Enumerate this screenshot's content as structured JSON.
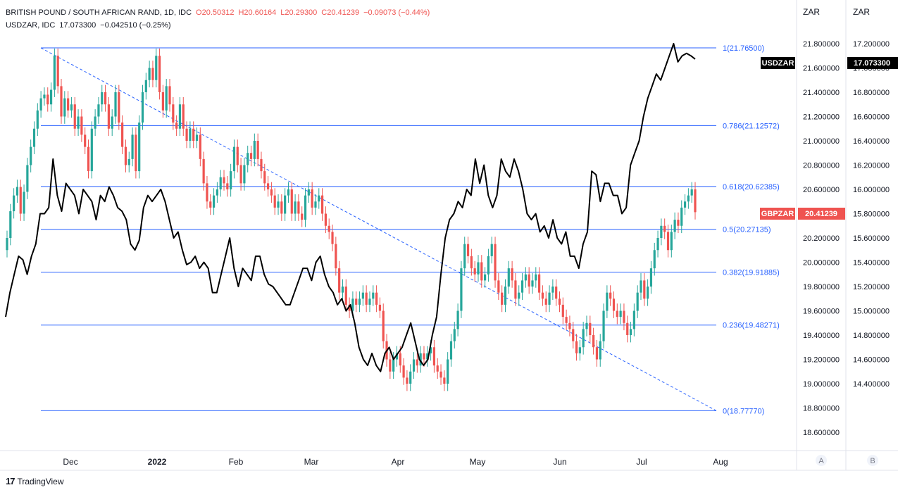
{
  "legend": {
    "main_title": "BRITISH POUND / SOUTH AFRICAN RAND, 1D, IDC",
    "open": "O20.50312",
    "high": "H20.60164",
    "low": "L20.29300",
    "close": "C20.41239",
    "change": "−0.09073 (−0.44%)",
    "overlay_title": "USDZAR, IDC",
    "overlay_last": "17.073300",
    "overlay_change": "−0.042510 (−0.25%)"
  },
  "scales": {
    "left_header": "ZAR",
    "right_header": "ZAR",
    "left_button": "A",
    "right_button": "B"
  },
  "footer": {
    "brand": "TradingView"
  },
  "colors": {
    "up": "#26a69a",
    "down": "#ef5350",
    "fib_line": "#2962ff",
    "fib_label": "#2962ff",
    "usdzar_line": "#000000",
    "gbpzar_tag": "#ef5350",
    "usdzar_tag": "#000000"
  },
  "chart_data": {
    "type": "line",
    "title": "BRITISH POUND / SOUTH AFRICAN RAND, 1D, IDC",
    "x_tick_labels": [
      "Dec",
      "2022",
      "Feb",
      "Mar",
      "Apr",
      "May",
      "Jun",
      "Jul",
      "Aug"
    ],
    "gbpzar_axis": {
      "ylim": [
        18.5,
        21.9
      ],
      "tick_labels": [
        "21.800000",
        "21.600000",
        "21.400000",
        "21.200000",
        "21.000000",
        "20.800000",
        "20.600000",
        "20.400000",
        "20.200000",
        "20.000000",
        "19.800000",
        "19.600000",
        "19.400000",
        "19.200000",
        "19.000000",
        "18.800000",
        "18.600000"
      ]
    },
    "usdzar_axis": {
      "ylim": [
        14.15,
        17.3
      ],
      "tick_labels": [
        "17.200000",
        "17.000000",
        "16.800000",
        "16.600000",
        "16.400000",
        "16.200000",
        "16.000000",
        "15.800000",
        "15.600000",
        "15.400000",
        "15.200000",
        "15.000000",
        "14.800000",
        "14.600000",
        "14.400000"
      ]
    },
    "fib_levels": [
      {
        "label": "1(21.76500)",
        "value": 21.765
      },
      {
        "label": "0.786(21.12572)",
        "value": 21.12572
      },
      {
        "label": "0.618(20.62385)",
        "value": 20.62385
      },
      {
        "label": "0.5(20.27135)",
        "value": 20.27135
      },
      {
        "label": "0.382(19.91885)",
        "value": 19.91885
      },
      {
        "label": "0.236(19.48271)",
        "value": 19.48271
      },
      {
        "label": "0(18.77770)",
        "value": 18.7777
      }
    ],
    "trend_line": {
      "from": [
        "2021-11-25",
        21.765
      ],
      "to": [
        "2022-08-01",
        18.7777
      ]
    },
    "series": [
      {
        "name": "GBPZAR",
        "type": "candlestick",
        "last_value_label": "20.41239",
        "closes": [
          20.2,
          20.42,
          20.55,
          20.62,
          20.4,
          20.58,
          20.8,
          20.95,
          21.1,
          21.25,
          21.35,
          21.38,
          21.3,
          21.42,
          21.7,
          21.45,
          21.2,
          21.35,
          21.25,
          21.3,
          21.1,
          21.2,
          21.05,
          20.95,
          20.75,
          21.1,
          21.2,
          21.3,
          21.4,
          21.3,
          21.1,
          21.2,
          21.4,
          21.15,
          20.95,
          20.8,
          20.85,
          21.05,
          20.75,
          21.15,
          21.4,
          21.5,
          21.6,
          21.5,
          21.7,
          21.4,
          21.25,
          21.45,
          21.3,
          21.15,
          21.1,
          21.3,
          21.1,
          21.0,
          21.1,
          21.0,
          21.05,
          20.85,
          20.65,
          20.5,
          20.45,
          20.55,
          20.6,
          20.7,
          20.65,
          20.6,
          20.75,
          20.95,
          20.8,
          20.65,
          20.8,
          20.9,
          20.85,
          21.0,
          20.85,
          20.75,
          20.65,
          20.6,
          20.55,
          20.45,
          20.5,
          20.4,
          20.55,
          20.6,
          20.4,
          20.5,
          20.4,
          20.35,
          20.55,
          20.6,
          20.45,
          20.5,
          20.55,
          20.4,
          20.3,
          20.25,
          20.15,
          19.95,
          19.75,
          19.8,
          19.65,
          19.6,
          19.7,
          19.65,
          19.7,
          19.75,
          19.65,
          19.7,
          19.75,
          19.65,
          19.6,
          19.35,
          19.2,
          19.1,
          19.2,
          19.25,
          19.15,
          19.05,
          19.0,
          19.1,
          19.2,
          19.15,
          19.25,
          19.2,
          19.25,
          19.3,
          19.15,
          19.1,
          19.05,
          19.0,
          19.2,
          19.35,
          19.45,
          19.6,
          19.95,
          20.15,
          20.05,
          19.95,
          19.9,
          20.0,
          19.85,
          19.9,
          20.05,
          20.15,
          19.85,
          19.75,
          19.65,
          19.8,
          19.95,
          19.85,
          19.7,
          19.75,
          19.85,
          19.9,
          19.8,
          19.85,
          19.9,
          19.75,
          19.7,
          19.65,
          19.75,
          19.8,
          19.7,
          19.65,
          19.55,
          19.5,
          19.45,
          19.35,
          19.25,
          19.3,
          19.45,
          19.5,
          19.4,
          19.3,
          19.2,
          19.35,
          19.6,
          19.75,
          19.7,
          19.6,
          19.55,
          19.6,
          19.5,
          19.4,
          19.45,
          19.6,
          19.75,
          19.85,
          19.7,
          19.8,
          19.95,
          20.1,
          20.2,
          20.3,
          20.25,
          20.1,
          20.25,
          20.35,
          20.3,
          20.45,
          20.5,
          20.55,
          20.6,
          20.41239
        ]
      },
      {
        "name": "USDZAR",
        "type": "line",
        "last_value_label": "17.073300",
        "values": [
          14.95,
          15.15,
          15.3,
          15.45,
          15.42,
          15.3,
          15.45,
          15.55,
          15.8,
          15.8,
          15.85,
          16.25,
          15.95,
          15.82,
          16.05,
          16.0,
          15.95,
          15.8,
          16.0,
          15.95,
          15.9,
          15.75,
          15.95,
          15.9,
          16.02,
          15.95,
          15.85,
          15.82,
          15.75,
          15.55,
          15.5,
          15.58,
          15.85,
          15.95,
          15.9,
          15.95,
          16.0,
          15.9,
          15.75,
          15.6,
          15.65,
          15.5,
          15.38,
          15.4,
          15.45,
          15.35,
          15.4,
          15.35,
          15.15,
          15.15,
          15.3,
          15.45,
          15.6,
          15.35,
          15.2,
          15.35,
          15.3,
          15.25,
          15.45,
          15.45,
          15.3,
          15.22,
          15.2,
          15.15,
          15.1,
          15.05,
          15.05,
          15.15,
          15.25,
          15.35,
          15.35,
          15.25,
          15.4,
          15.45,
          15.3,
          15.2,
          15.15,
          15.05,
          15.1,
          15.0,
          15.05,
          14.9,
          14.7,
          14.6,
          14.55,
          14.65,
          14.55,
          14.5,
          14.65,
          14.7,
          14.6,
          14.65,
          14.7,
          14.8,
          14.9,
          14.75,
          14.6,
          14.55,
          14.6,
          14.8,
          14.95,
          15.3,
          15.6,
          15.75,
          15.8,
          15.9,
          15.85,
          16.0,
          15.95,
          16.25,
          16.05,
          16.2,
          15.95,
          15.85,
          15.95,
          16.25,
          16.15,
          16.1,
          16.25,
          16.15,
          16.0,
          15.8,
          15.75,
          15.8,
          15.65,
          15.7,
          15.6,
          15.75,
          15.6,
          15.55,
          15.65,
          15.45,
          15.45,
          15.35,
          15.55,
          15.65,
          16.15,
          16.12,
          15.9,
          16.05,
          16.05,
          15.95,
          15.95,
          15.8,
          15.85,
          16.2,
          16.3,
          16.4,
          16.6,
          16.75,
          16.85,
          16.95,
          16.9,
          17.0,
          17.1,
          17.2,
          17.05,
          17.1,
          17.12,
          17.1,
          17.073
        ]
      }
    ]
  }
}
